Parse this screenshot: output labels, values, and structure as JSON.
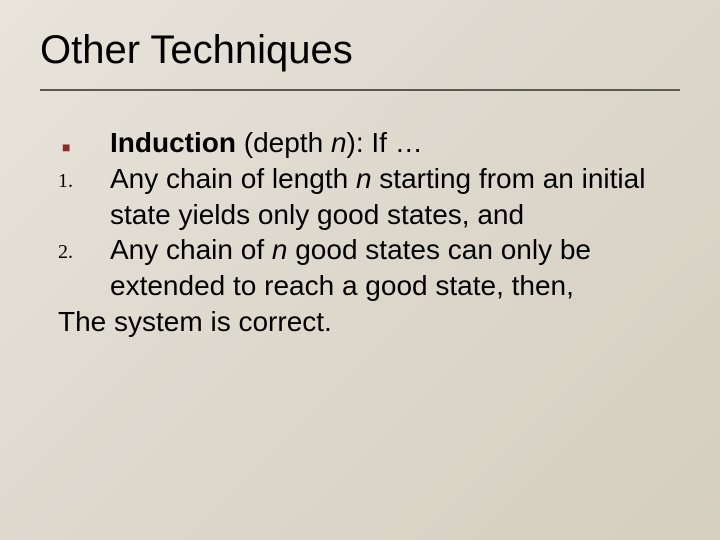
{
  "slide": {
    "title": "Other Techniques",
    "background_gradient": [
      "#e8e4dc",
      "#ddd8cc",
      "#d4cfc0"
    ],
    "title_fontsize": 40,
    "body_fontsize": 28,
    "number_fontsize": 20,
    "text_color": "#000000",
    "bullet_color": "#8b2a2a",
    "rule_color": "#5a5a52",
    "font_family": "Verdana",
    "number_font_family": "Georgia",
    "items": [
      {
        "marker_type": "square",
        "marker": "■",
        "segments": {
          "bold": "Induction",
          "plain1": " (depth ",
          "italic1": "n",
          "plain2": "): If …"
        }
      },
      {
        "marker_type": "num",
        "marker": "1.",
        "segments": {
          "plain1": "Any chain of length ",
          "italic1": "n",
          "plain2": " starting from an initial state yields only good states, and"
        }
      },
      {
        "marker_type": "num",
        "marker": "2.",
        "segments": {
          "plain1": "Any chain of ",
          "italic1": "n",
          "plain2": " good states can only be extended to reach a good state, then,"
        }
      }
    ],
    "conclusion": "The system is correct."
  }
}
